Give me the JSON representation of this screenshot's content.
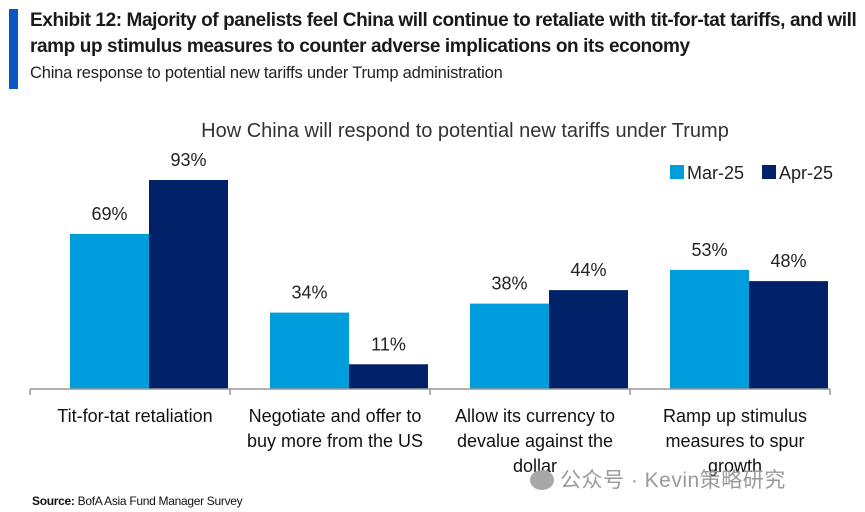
{
  "header": {
    "title": "Exhibit 12: Majority of panelists feel China will continue to retaliate with tit-for-tat tariffs, and will ramp up stimulus measures to counter adverse implications on its economy",
    "subtitle": "China response to potential new tariffs under Trump administration"
  },
  "footer": {
    "source_label": "Source:",
    "source_text": "BofA Asia Fund Manager Survey",
    "watermark": "公众号 · Kevin策略研究"
  },
  "chart_data": {
    "type": "bar",
    "title": "How China will respond to potential new tariffs under Trump",
    "xlabel": "",
    "ylabel": "",
    "ylim": [
      0,
      100
    ],
    "grid": false,
    "legend": "top-right",
    "categories": [
      [
        "Tit-for-tat retaliation"
      ],
      [
        "Negotiate and offer to",
        "buy more from the US"
      ],
      [
        "Allow its currency to",
        "devalue against the",
        "dollar"
      ],
      [
        "Ramp up stimulus",
        "measures to spur",
        "growth"
      ]
    ],
    "series": [
      {
        "name": "Mar-25",
        "color": "#009ddc",
        "values": [
          69,
          34,
          38,
          53
        ],
        "labels": [
          "69%",
          "34%",
          "38%",
          "53%"
        ]
      },
      {
        "name": "Apr-25",
        "color": "#012169",
        "values": [
          93,
          11,
          44,
          48
        ],
        "labels": [
          "93%",
          "11%",
          "44%",
          "48%"
        ]
      }
    ]
  }
}
